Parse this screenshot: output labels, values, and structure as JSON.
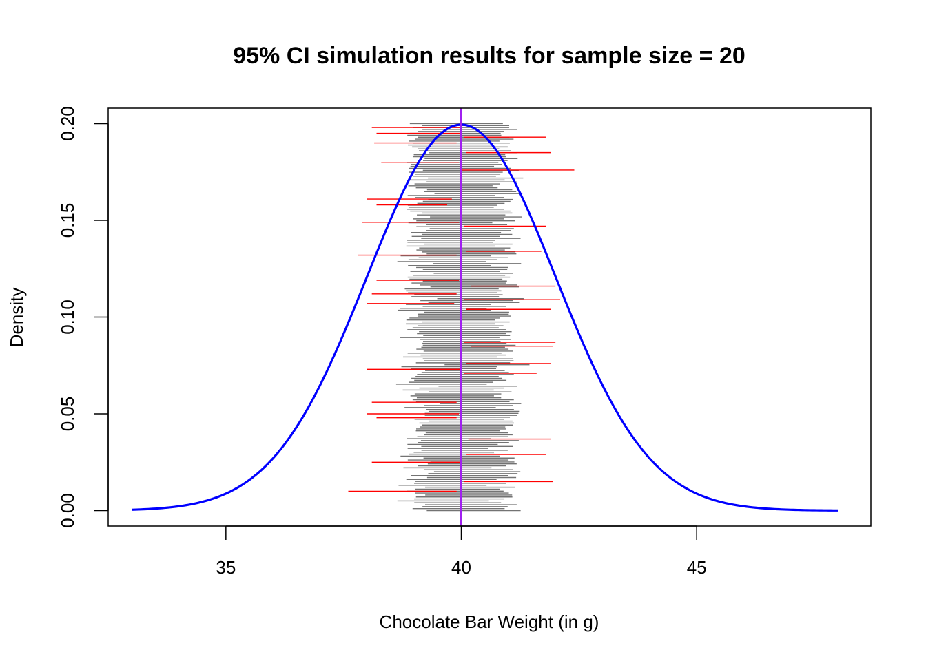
{
  "chart_data": {
    "type": "line",
    "title": "95% CI simulation results for sample size = 20",
    "xlabel": "Chocolate Bar Weight (in g)",
    "ylabel": "Density",
    "xlim": [
      32.5,
      48.7
    ],
    "ylim": [
      -0.008,
      0.208
    ],
    "x_ticks": [
      35,
      40,
      45
    ],
    "x_tick_labels": [
      "35",
      "40",
      "45"
    ],
    "y_ticks": [
      0.0,
      0.05,
      0.1,
      0.15,
      0.2
    ],
    "y_tick_labels": [
      "0.00",
      "0.05",
      "0.10",
      "0.15",
      "0.20"
    ],
    "density_curve": {
      "name": "Normal density",
      "distribution": "normal",
      "mean": 40,
      "sd": 2,
      "x_range": [
        33,
        48
      ],
      "color": "#0000ff"
    },
    "true_mean_line": {
      "x": 40,
      "color": "#a020f0"
    },
    "simulation": {
      "intervals_count": 200,
      "mean_center": 40,
      "typical_half_width": 0.95,
      "covering_color": "#000000",
      "missing_color": "#ff0000",
      "y_range": [
        0.0,
        0.2
      ],
      "missing_intervals": [
        {
          "y": 0.198,
          "low": 38.1,
          "high": 40.0
        },
        {
          "y": 0.195,
          "low": 38.2,
          "high": 39.98
        },
        {
          "y": 0.193,
          "low": 40.05,
          "high": 41.8
        },
        {
          "y": 0.19,
          "low": 38.15,
          "high": 39.9
        },
        {
          "y": 0.185,
          "low": 40.1,
          "high": 41.9
        },
        {
          "y": 0.18,
          "low": 38.3,
          "high": 39.95
        },
        {
          "y": 0.176,
          "low": 40.02,
          "high": 42.4
        },
        {
          "y": 0.161,
          "low": 38.0,
          "high": 39.8
        },
        {
          "y": 0.158,
          "low": 38.2,
          "high": 39.7
        },
        {
          "y": 0.149,
          "low": 37.9,
          "high": 39.95
        },
        {
          "y": 0.147,
          "low": 40.05,
          "high": 41.8
        },
        {
          "y": 0.134,
          "low": 40.1,
          "high": 41.7
        },
        {
          "y": 0.132,
          "low": 37.8,
          "high": 39.9
        },
        {
          "y": 0.119,
          "low": 38.2,
          "high": 39.95
        },
        {
          "y": 0.116,
          "low": 40.2,
          "high": 42.0
        },
        {
          "y": 0.112,
          "low": 38.1,
          "high": 39.9
        },
        {
          "y": 0.109,
          "low": 40.05,
          "high": 42.1
        },
        {
          "y": 0.107,
          "low": 38.0,
          "high": 39.85
        },
        {
          "y": 0.104,
          "low": 40.1,
          "high": 41.9
        },
        {
          "y": 0.087,
          "low": 40.05,
          "high": 42.0
        },
        {
          "y": 0.085,
          "low": 40.2,
          "high": 41.95
        },
        {
          "y": 0.076,
          "low": 40.1,
          "high": 41.9
        },
        {
          "y": 0.073,
          "low": 38.0,
          "high": 39.98
        },
        {
          "y": 0.071,
          "low": 40.05,
          "high": 41.6
        },
        {
          "y": 0.056,
          "low": 38.1,
          "high": 39.9
        },
        {
          "y": 0.05,
          "low": 38.0,
          "high": 39.95
        },
        {
          "y": 0.048,
          "low": 38.2,
          "high": 39.9
        },
        {
          "y": 0.037,
          "low": 40.15,
          "high": 41.9
        },
        {
          "y": 0.029,
          "low": 40.1,
          "high": 41.8
        },
        {
          "y": 0.025,
          "low": 38.1,
          "high": 39.98
        },
        {
          "y": 0.015,
          "low": 40.05,
          "high": 41.95
        },
        {
          "y": 0.01,
          "low": 37.6,
          "high": 39.9
        }
      ]
    }
  }
}
